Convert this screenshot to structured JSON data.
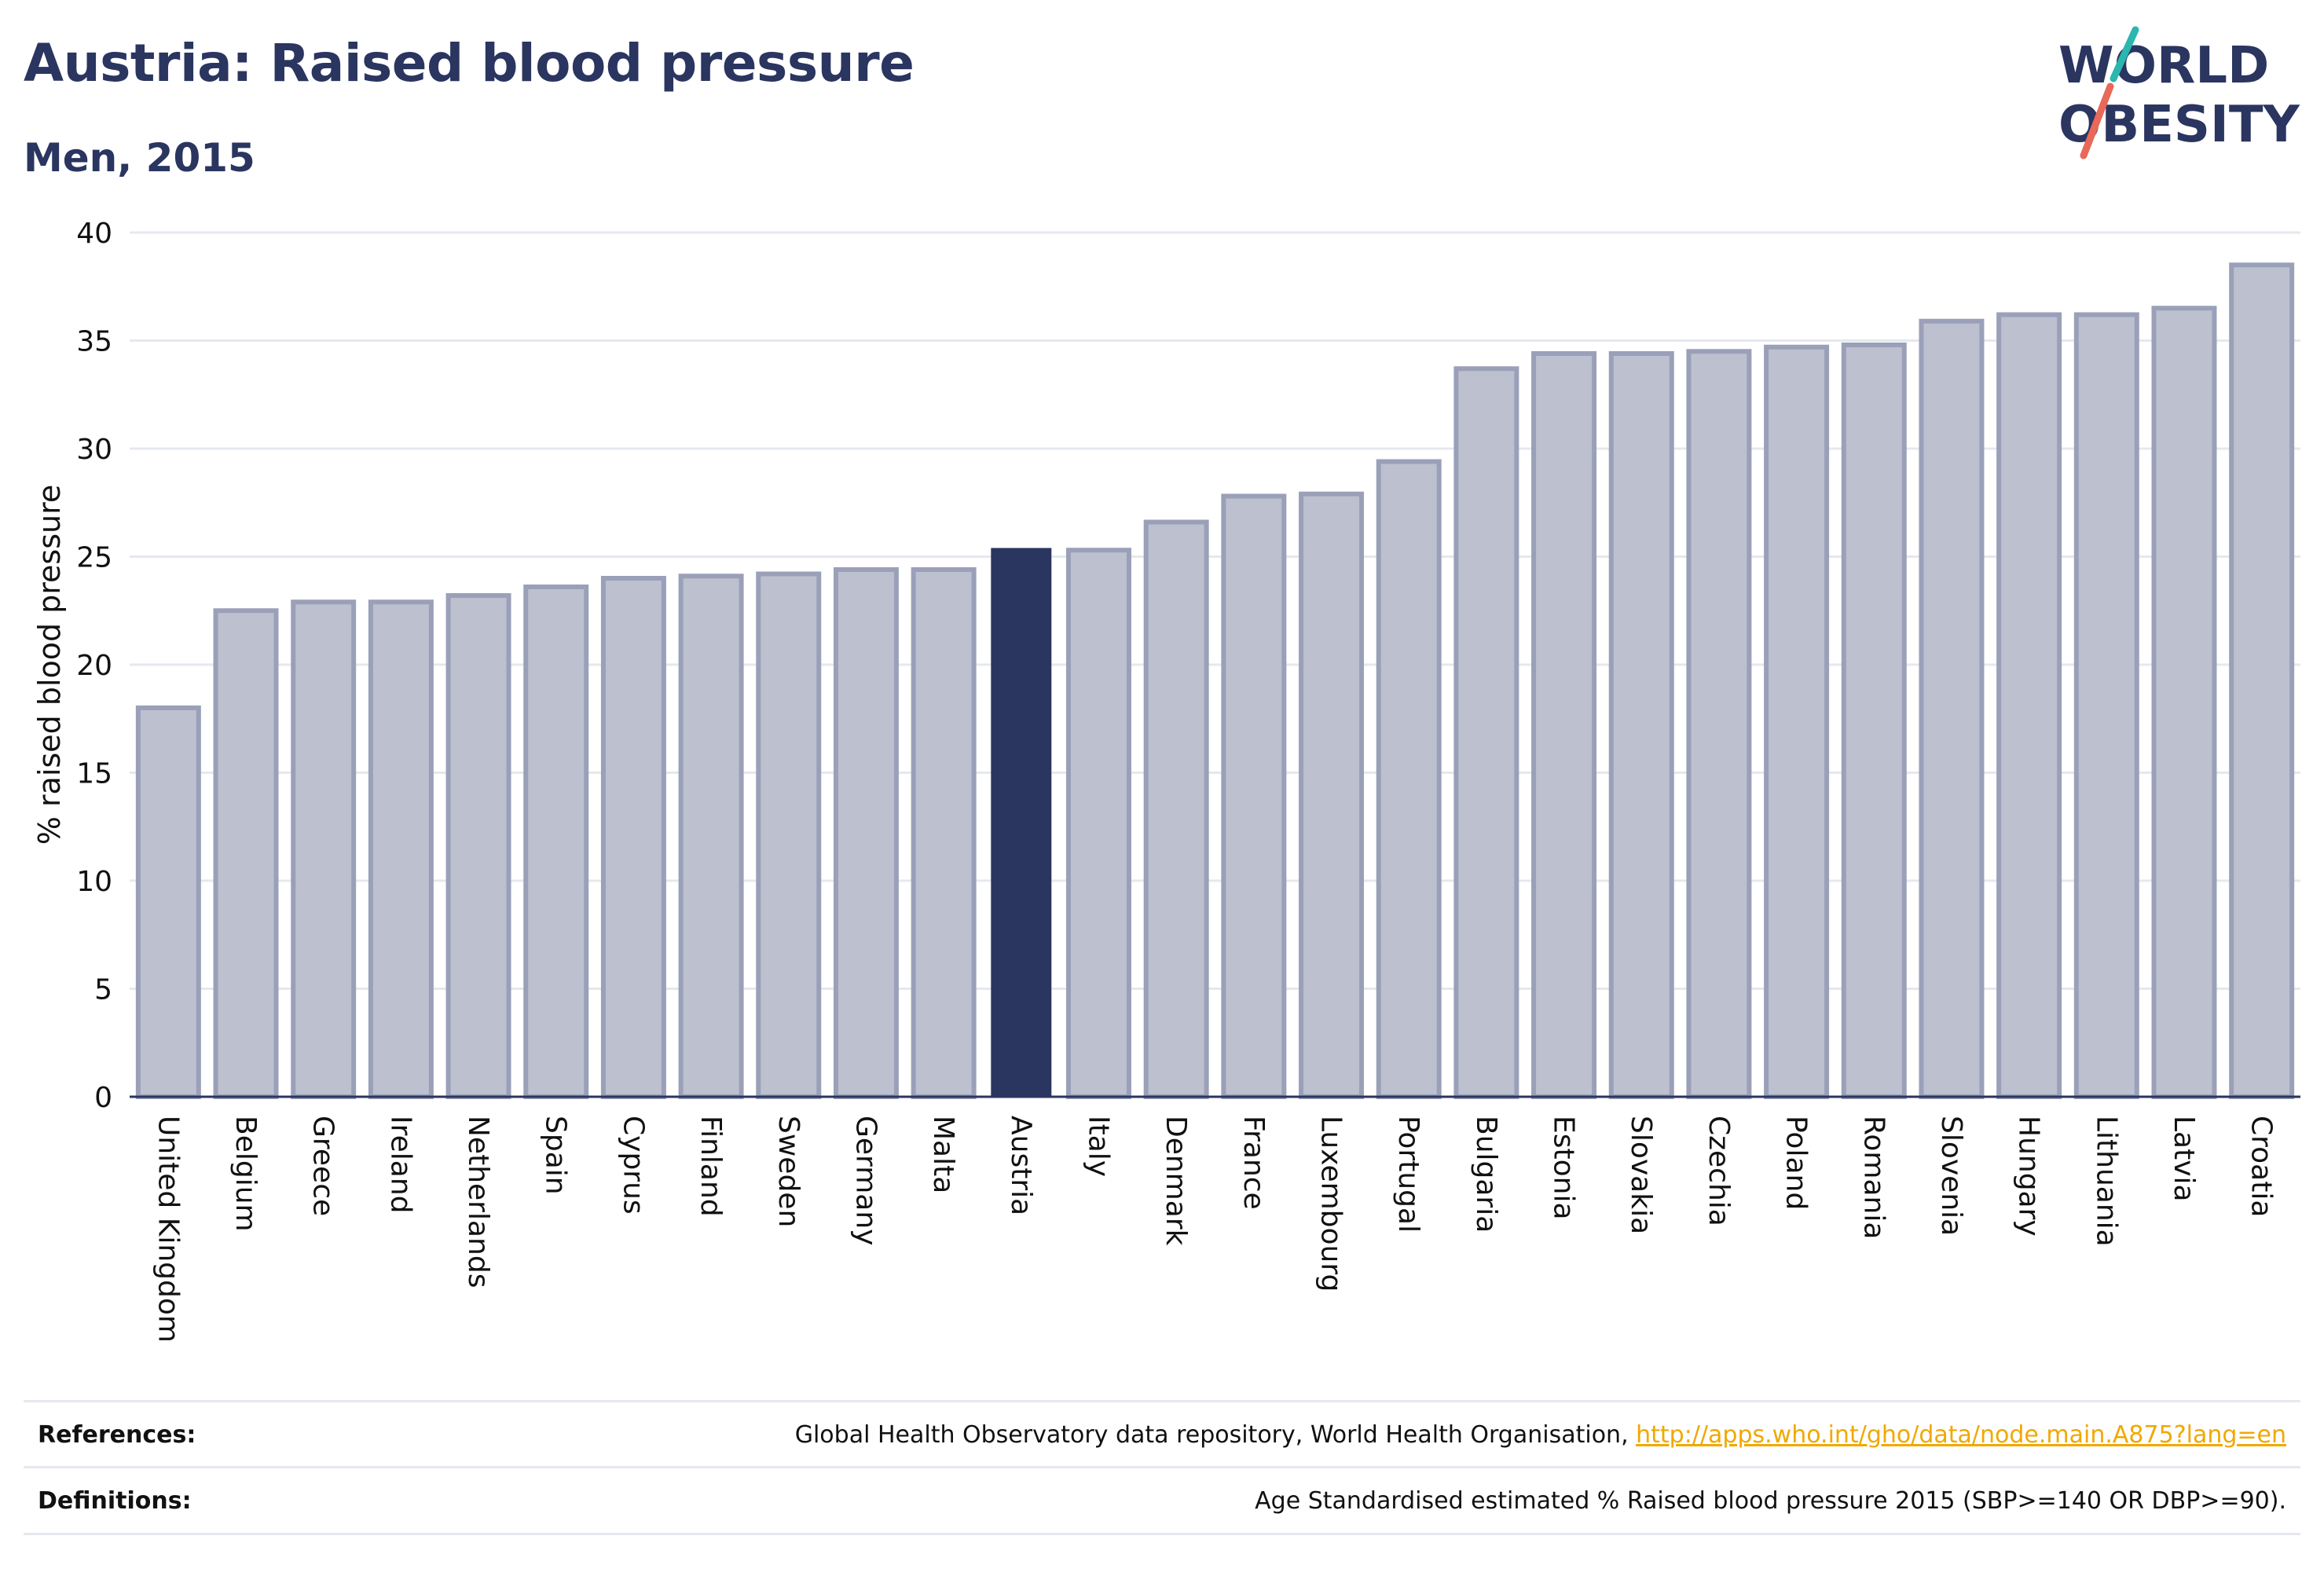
{
  "header": {
    "title": "Austria: Raised blood pressure",
    "subtitle": "Men, 2015"
  },
  "logo": {
    "line1": "WORLD",
    "line2": "OBESITY",
    "colors": {
      "text": "#2a3560",
      "teal": "#2bb6b0",
      "coral": "#e8685a"
    }
  },
  "chart_data": {
    "type": "bar",
    "title": "Austria: Raised blood pressure",
    "subtitle": "Men, 2015",
    "xlabel": "",
    "ylabel": "% raised blood pressure",
    "ylim": [
      0,
      40
    ],
    "yticks": [
      0,
      5,
      10,
      15,
      20,
      25,
      30,
      35,
      40
    ],
    "grid": true,
    "highlight": "Austria",
    "colors": {
      "bar": "#bcc0cf",
      "bar_border": "#9aa0b8",
      "highlight": "#2a3560",
      "grid": "#e6e8ef"
    },
    "categories": [
      "United Kingdom",
      "Belgium",
      "Greece",
      "Ireland",
      "Netherlands",
      "Spain",
      "Cyprus",
      "Finland",
      "Sweden",
      "Germany",
      "Malta",
      "Austria",
      "Italy",
      "Denmark",
      "France",
      "Luxembourg",
      "Portugal",
      "Bulgaria",
      "Estonia",
      "Slovakia",
      "Czechia",
      "Poland",
      "Romania",
      "Slovenia",
      "Hungary",
      "Lithuania",
      "Latvia",
      "Croatia"
    ],
    "values": [
      18.0,
      22.5,
      22.9,
      22.9,
      23.2,
      23.6,
      24.0,
      24.1,
      24.2,
      24.4,
      24.4,
      25.4,
      25.3,
      26.6,
      27.8,
      27.9,
      29.4,
      33.7,
      34.4,
      34.4,
      34.5,
      34.7,
      34.8,
      35.9,
      36.2,
      36.2,
      36.5,
      38.5
    ]
  },
  "footer": {
    "references_label": "References:",
    "references_text": "Global Health Observatory data repository, World Health Organisation, ",
    "references_link": "http://apps.who.int/gho/data/node.main.A875?lang=en",
    "definitions_label": "Definitions:",
    "definitions_text": "Age Standardised estimated % Raised blood pressure 2015 (SBP>=140 OR DBP>=90)."
  }
}
